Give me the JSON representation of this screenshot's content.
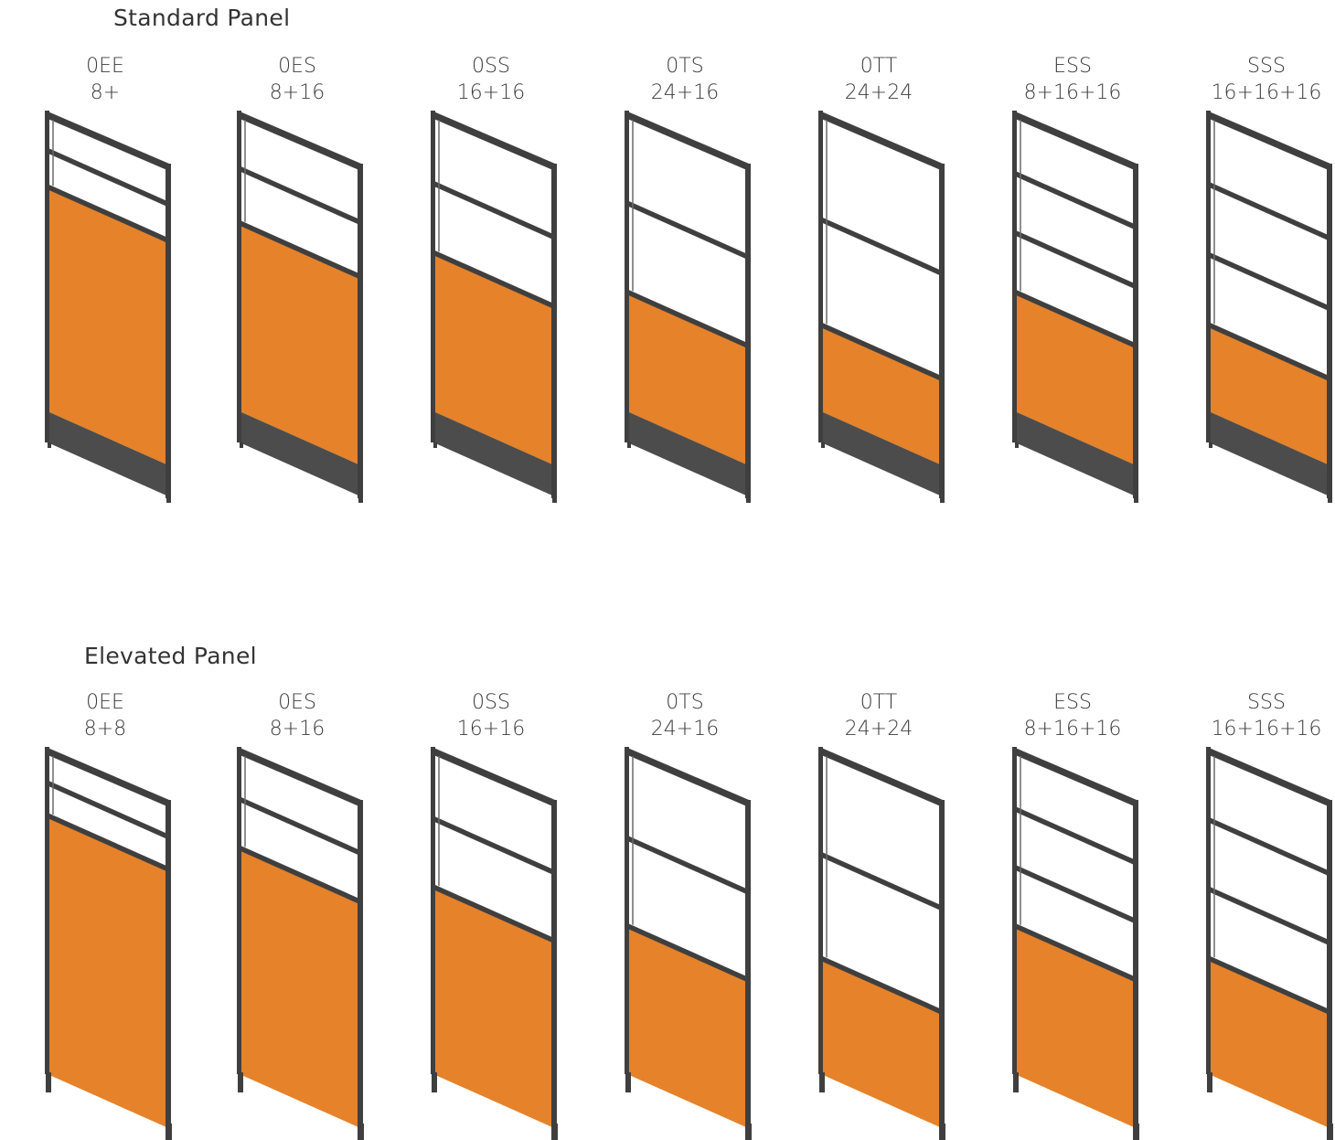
{
  "colors": {
    "fabric": "#E5822A",
    "frame": "#3f3f3f",
    "base": "#4c4c4c"
  },
  "sections": [
    {
      "title": "Standard Panel",
      "elevated": false,
      "panels": [
        {
          "code": "0EE",
          "size": "8+",
          "glass": 2,
          "fabric": 0.78
        },
        {
          "code": "0ES",
          "size": "8+16",
          "glass": 2,
          "fabric": 0.67
        },
        {
          "code": "0SS",
          "size": "16+16",
          "glass": 2,
          "fabric": 0.58
        },
        {
          "code": "0TS",
          "size": "24+16",
          "glass": 2,
          "fabric": 0.46
        },
        {
          "code": "0TT",
          "size": "24+24",
          "glass": 2,
          "fabric": 0.36
        },
        {
          "code": "ESS",
          "size": "8+16+16",
          "glass": 3,
          "fabric": 0.46
        },
        {
          "code": "SSS",
          "size": "16+16+16",
          "glass": 3,
          "fabric": 0.36
        }
      ]
    },
    {
      "title": "Elevated Panel",
      "elevated": true,
      "panels": [
        {
          "code": "0EE",
          "size": "8+8",
          "glass": 2,
          "fabric": 0.8
        },
        {
          "code": "0ES",
          "size": "8+16",
          "glass": 2,
          "fabric": 0.7
        },
        {
          "code": "0SS",
          "size": "16+16",
          "glass": 2,
          "fabric": 0.58
        },
        {
          "code": "0TS",
          "size": "24+16",
          "glass": 2,
          "fabric": 0.46
        },
        {
          "code": "0TT",
          "size": "24+24",
          "glass": 2,
          "fabric": 0.36
        },
        {
          "code": "ESS",
          "size": "8+16+16",
          "glass": 3,
          "fabric": 0.46
        },
        {
          "code": "SSS",
          "size": "16+16+16",
          "glass": 3,
          "fabric": 0.36
        }
      ]
    }
  ]
}
